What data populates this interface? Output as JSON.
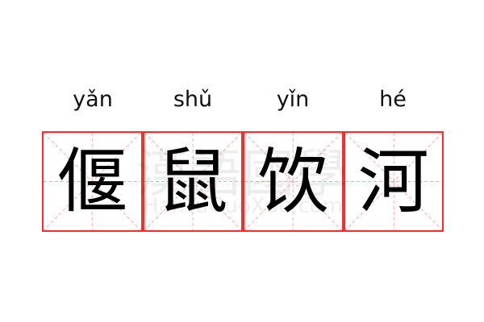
{
  "items": [
    {
      "pinyin": "yǎn",
      "char": "偃"
    },
    {
      "pinyin": "shǔ",
      "char": "鼠"
    },
    {
      "pinyin": "yǐn",
      "char": "饮"
    },
    {
      "pinyin": "hé",
      "char": "河"
    }
  ],
  "watermark": {
    "chinese": "漢語國學",
    "latin": "HanYuGuoXue.com"
  },
  "colors": {
    "border": "#ff2a2a",
    "guide": "#ffaaaa",
    "text": "#000000"
  }
}
